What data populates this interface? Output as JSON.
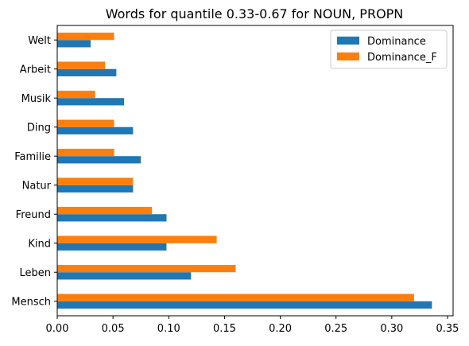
{
  "chart_data": {
    "type": "bar",
    "orientation": "horizontal",
    "title": "Words for quantile 0.33-0.67 for NOUN, PROPN",
    "xlabel": "",
    "ylabel": "",
    "categories": [
      "Mensch",
      "Leben",
      "Kind",
      "Freund",
      "Natur",
      "Familie",
      "Ding",
      "Musik",
      "Arbeit",
      "Welt"
    ],
    "series": [
      {
        "name": "Dominance",
        "color": "#1f77b4",
        "values": [
          0.336,
          0.12,
          0.098,
          0.098,
          0.068,
          0.075,
          0.068,
          0.06,
          0.053,
          0.03
        ]
      },
      {
        "name": "Dominance_F",
        "color": "#ff7f0e",
        "values": [
          0.32,
          0.16,
          0.143,
          0.085,
          0.068,
          0.051,
          0.051,
          0.034,
          0.043,
          0.051
        ]
      }
    ],
    "xlim": [
      0,
      0.355
    ],
    "xticks": [
      0.0,
      0.05,
      0.1,
      0.15,
      0.2,
      0.25,
      0.3,
      0.35
    ],
    "xtick_labels": [
      "0.00",
      "0.05",
      "0.10",
      "0.15",
      "0.20",
      "0.25",
      "0.30",
      "0.35"
    ],
    "grid": false,
    "legend_position": "top-right"
  }
}
